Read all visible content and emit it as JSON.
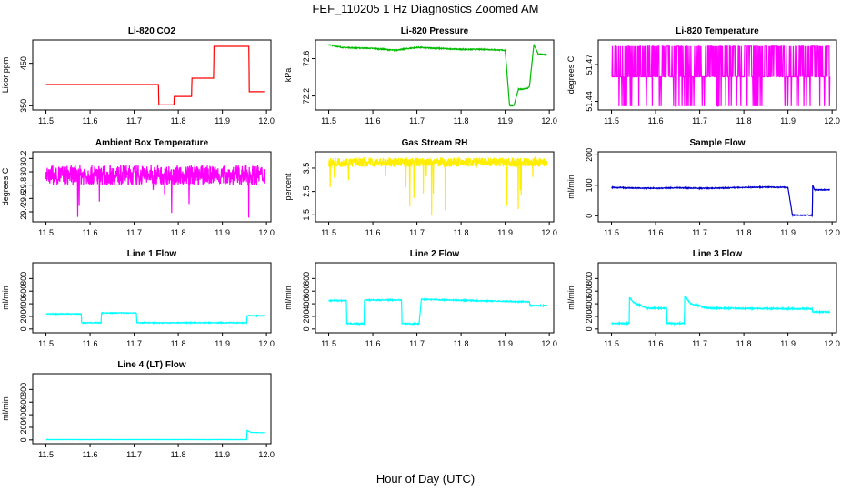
{
  "figure": {
    "title": "FEF_110205  1 Hz Diagnostics Zoomed AM",
    "xlabel": "Hour of Day (UTC)"
  },
  "colors": {
    "red": "#ff0000",
    "green": "#00bb00",
    "magenta": "#ff00ff",
    "yellow": "#ffee00",
    "blue": "#0000cc",
    "cyan": "#00ffff",
    "frame": "#000000"
  },
  "chart_data": [
    {
      "type": "line",
      "title": "Li-820 CO2",
      "xlabel": "",
      "ylabel": "Licor ppm",
      "xlim": [
        11.47,
        12.01
      ],
      "ylim": [
        340,
        505
      ],
      "xticks": [
        11.5,
        11.6,
        11.7,
        11.8,
        11.9,
        12.0
      ],
      "yticks": [
        350,
        450
      ],
      "color": "red",
      "noise": 0,
      "x": [
        11.5,
        11.755,
        11.756,
        11.79,
        11.791,
        11.83,
        11.831,
        11.88,
        11.881,
        11.96,
        11.961,
        11.995
      ],
      "values": [
        400,
        400,
        352,
        352,
        372,
        372,
        415,
        415,
        490,
        490,
        383,
        383
      ]
    },
    {
      "type": "line",
      "title": "Li-820 Pressure",
      "xlabel": "",
      "ylabel": "kPa",
      "xlim": [
        11.47,
        12.01
      ],
      "ylim": [
        72.05,
        72.8
      ],
      "xticks": [
        11.5,
        11.6,
        11.7,
        11.8,
        11.9,
        12.0
      ],
      "yticks": [
        72.2,
        72.6
      ],
      "color": "green",
      "noise": 0.005,
      "x": [
        11.5,
        11.51,
        11.53,
        11.6,
        11.65,
        11.7,
        11.75,
        11.8,
        11.85,
        11.9,
        11.91,
        11.92,
        11.93,
        11.95,
        11.955,
        11.965,
        11.975,
        11.995
      ],
      "values": [
        72.75,
        72.74,
        72.72,
        72.71,
        72.69,
        72.72,
        72.71,
        72.7,
        72.7,
        72.69,
        72.1,
        72.1,
        72.27,
        72.28,
        72.3,
        72.75,
        72.65,
        72.64
      ]
    },
    {
      "type": "band",
      "title": "Li-820 Temperature",
      "xlabel": "",
      "ylabel": "degrees C",
      "xlim": [
        11.47,
        12.01
      ],
      "ylim": [
        51.433,
        51.49
      ],
      "xticks": [
        11.5,
        11.6,
        11.7,
        11.8,
        11.9,
        12.0
      ],
      "yticks": [
        51.44,
        51.47
      ],
      "color": "magenta",
      "x": [
        11.5,
        11.995
      ],
      "levels": [
        51.436,
        51.46,
        51.485
      ],
      "base": 51.46
    },
    {
      "type": "noise",
      "title": "Ambient Box Temperature",
      "xlabel": "",
      "ylabel": "degrees C",
      "xlim": [
        11.47,
        12.01
      ],
      "ylim": [
        29.25,
        30.3
      ],
      "xticks": [
        11.5,
        11.6,
        11.7,
        11.8,
        11.9,
        12.0
      ],
      "yticks": [
        29.4,
        29.6,
        29.8,
        30.0,
        30.2
      ],
      "color": "magenta",
      "x": [
        11.5,
        11.995
      ],
      "center": 29.95,
      "amplitude": 0.15,
      "min_spike": 29.3
    },
    {
      "type": "noise",
      "title": "Gas Stream RH",
      "xlabel": "",
      "ylabel": "percent",
      "xlim": [
        11.47,
        12.01
      ],
      "ylim": [
        1.2,
        4.2
      ],
      "xticks": [
        11.5,
        11.6,
        11.7,
        11.8,
        11.9,
        12.0
      ],
      "yticks": [
        1.5,
        2.5,
        3.5
      ],
      "color": "yellow",
      "x": [
        11.5,
        11.995
      ],
      "center": 3.75,
      "amplitude": 0.2,
      "min_spike": 1.4
    },
    {
      "type": "line",
      "title": "Sample Flow",
      "xlabel": "",
      "ylabel": "ml/min",
      "xlim": [
        11.47,
        12.01
      ],
      "ylim": [
        -20,
        210
      ],
      "xticks": [
        11.5,
        11.6,
        11.7,
        11.8,
        11.9,
        12.0
      ],
      "yticks": [
        0,
        100,
        200
      ],
      "color": "blue",
      "noise": 1.5,
      "x": [
        11.5,
        11.55,
        11.6,
        11.65,
        11.7,
        11.75,
        11.8,
        11.85,
        11.9,
        11.91,
        11.955,
        11.956,
        11.96,
        11.995
      ],
      "values": [
        93,
        91,
        90,
        92,
        90,
        91,
        93,
        94,
        93,
        2,
        2,
        100,
        85,
        85
      ]
    },
    {
      "type": "line",
      "title": "Line 1 Flow",
      "xlabel": "",
      "ylabel": "ml/min",
      "xlim": [
        11.47,
        12.01
      ],
      "ylim": [
        -60,
        1050
      ],
      "xticks": [
        11.5,
        11.6,
        11.7,
        11.8,
        11.9,
        12.0
      ],
      "yticks": [
        0,
        200,
        400,
        600,
        800
      ],
      "color": "cyan",
      "noise": 6,
      "x": [
        11.5,
        11.58,
        11.581,
        11.625,
        11.626,
        11.705,
        11.706,
        11.955,
        11.956,
        11.995
      ],
      "values": [
        240,
        240,
        100,
        100,
        255,
        255,
        100,
        100,
        210,
        210
      ]
    },
    {
      "type": "line",
      "title": "Line 2 Flow",
      "xlabel": "",
      "ylabel": "ml/min",
      "xlim": [
        11.47,
        12.01
      ],
      "ylim": [
        -60,
        1050
      ],
      "xticks": [
        11.5,
        11.6,
        11.7,
        11.8,
        11.9,
        12.0
      ],
      "yticks": [
        0,
        200,
        400,
        600,
        800
      ],
      "color": "cyan",
      "noise": 8,
      "x": [
        11.5,
        11.54,
        11.541,
        11.58,
        11.581,
        11.665,
        11.666,
        11.705,
        11.71,
        11.955,
        11.956,
        11.995
      ],
      "values": [
        450,
        450,
        85,
        85,
        460,
        460,
        85,
        85,
        470,
        430,
        370,
        370
      ]
    },
    {
      "type": "line",
      "title": "Line 3 Flow",
      "xlabel": "",
      "ylabel": "ml/min",
      "xlim": [
        11.47,
        12.01
      ],
      "ylim": [
        -60,
        1050
      ],
      "xticks": [
        11.5,
        11.6,
        11.7,
        11.8,
        11.9,
        12.0
      ],
      "yticks": [
        0,
        200,
        400,
        600,
        800
      ],
      "color": "cyan",
      "noise": 10,
      "x": [
        11.5,
        11.54,
        11.541,
        11.55,
        11.58,
        11.625,
        11.626,
        11.665,
        11.666,
        11.68,
        11.72,
        11.955,
        11.956,
        11.995
      ],
      "values": [
        90,
        90,
        500,
        420,
        330,
        330,
        90,
        90,
        520,
        400,
        330,
        320,
        270,
        270
      ]
    },
    {
      "type": "line",
      "title": "Line 4 (LT) Flow",
      "xlabel": "",
      "ylabel": "ml/min",
      "xlim": [
        11.47,
        12.01
      ],
      "ylim": [
        -60,
        1050
      ],
      "xticks": [
        11.5,
        11.6,
        11.7,
        11.8,
        11.9,
        12.0
      ],
      "yticks": [
        0,
        200,
        400,
        600,
        800
      ],
      "color": "cyan",
      "noise": 1.5,
      "x": [
        11.5,
        11.955,
        11.956,
        11.965,
        11.995
      ],
      "values": [
        5,
        5,
        150,
        120,
        115
      ]
    }
  ]
}
